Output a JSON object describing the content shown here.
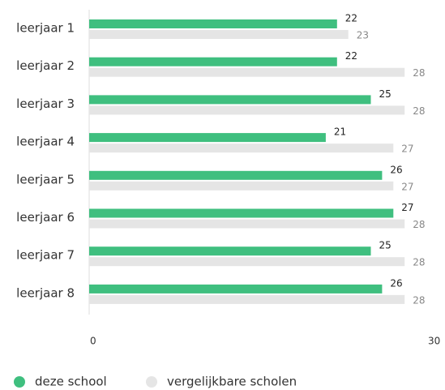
{
  "chart_data": {
    "type": "bar",
    "orientation": "horizontal",
    "categories": [
      "leerjaar 1",
      "leerjaar 2",
      "leerjaar 3",
      "leerjaar 4",
      "leerjaar 5",
      "leerjaar 6",
      "leerjaar 7",
      "leerjaar 8"
    ],
    "series": [
      {
        "name": "deze school",
        "color": "#3fbf7f",
        "values": [
          22,
          22,
          25,
          21,
          26,
          27,
          25,
          26
        ]
      },
      {
        "name": "vergelijkbare scholen",
        "color": "#e5e5e5",
        "values": [
          23,
          28,
          28,
          27,
          27,
          28,
          28,
          28
        ]
      }
    ],
    "xlim": [
      0,
      30
    ],
    "xticks": [
      0,
      30
    ]
  }
}
